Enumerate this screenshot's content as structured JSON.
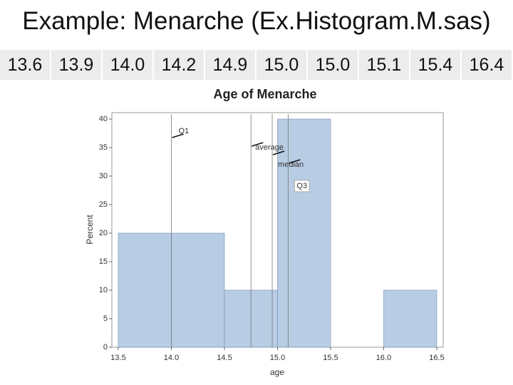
{
  "slide_title": "Example: Menarche (Ex.Histogram.M.sas)",
  "values_row": [
    "13.6",
    "13.9",
    "14.0",
    "14.2",
    "14.9",
    "15.0",
    "15.0",
    "15.1",
    "15.4",
    "16.4"
  ],
  "chart_data": {
    "type": "histogram",
    "title": "Age of Menarche",
    "x_label": "age",
    "y_label": "Percent",
    "bins": [
      13.5,
      14.0,
      14.5,
      15.0,
      15.5,
      16.0,
      16.5
    ],
    "values": [
      20,
      20,
      10,
      40,
      0,
      10
    ],
    "color": "#b8cce4",
    "xlim": [
      13.5,
      16.5
    ],
    "xticks": [
      13.5,
      {
        "value": 14,
        "label": "14.0"
      },
      14.5,
      {
        "value": 15,
        "label": "15.0"
      },
      15.5,
      {
        "value": 16,
        "label": "16.0"
      },
      16.5
    ],
    "ylim": [
      0,
      40
    ],
    "yticks": [
      0,
      5,
      10,
      15,
      20,
      25,
      30,
      35,
      40
    ],
    "annotations": [
      {
        "label": "Q1",
        "x": 14.0
      },
      {
        "label": "average",
        "x": 14.75
      },
      {
        "label": "median",
        "x": 14.95
      },
      {
        "label": "Q3",
        "x": 15.1
      }
    ]
  }
}
